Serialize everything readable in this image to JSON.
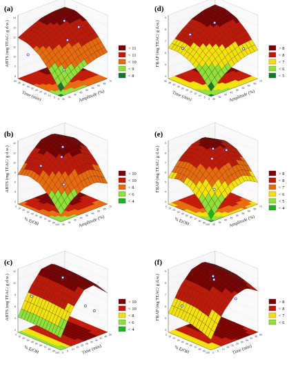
{
  "figure": {
    "palette": {
      "dark_red": "#7a0000",
      "red": "#c21807",
      "orange": "#e86a0c",
      "yellow": "#f4e20a",
      "light_green": "#8fe23a",
      "green": "#1db51d",
      "dark_green": "#0f7a2e",
      "point": "#2f3fc9"
    }
  },
  "chart_data": [
    {
      "panel": "(a)",
      "type": "surface",
      "xlabel": "Amplitude (%)",
      "ylabel": "Time (min)",
      "zlabel": "ABTS (mg TEAC/ g d.w.)",
      "xticks": [
        "30",
        "35",
        "40",
        "45",
        "50",
        "55",
        "60",
        "65",
        "70"
      ],
      "yticks": [
        "0",
        "5",
        "10",
        "15",
        "20",
        "25",
        "30",
        "35",
        "40",
        "45",
        "50"
      ],
      "zticks": [
        "8",
        "9",
        "10",
        "11",
        "12",
        "13",
        "14"
      ],
      "zlim": [
        7.5,
        14
      ],
      "legend": [
        "> 11",
        "< 11",
        "< 10",
        "< 9",
        "< 8"
      ],
      "legend_colors": [
        "#7a0000",
        "#c21807",
        "#e86a0c",
        "#8fe23a",
        "#0f7a2e"
      ],
      "grid": [
        [
          8.0,
          9.6,
          10.8,
          11.5,
          11.7
        ],
        [
          8.9,
          10.3,
          11.5,
          12.2,
          12.3
        ],
        [
          9.6,
          11.0,
          12.1,
          12.7,
          12.8
        ],
        [
          10.0,
          11.4,
          12.5,
          13.0,
          13.0
        ],
        [
          10.2,
          11.6,
          12.6,
          13.1,
          13.0
        ]
      ],
      "points": [
        [
          40,
          10,
          9.4
        ],
        [
          55,
          30,
          13.0
        ],
        [
          65,
          40,
          10.2
        ],
        [
          35,
          45,
          9.9
        ],
        [
          60,
          20,
          12.5
        ]
      ]
    },
    {
      "panel": "(b)",
      "type": "surface",
      "xlabel": "Amplitude (%)",
      "ylabel": "% EtOH",
      "zlabel": "ABTS (mg TEAC/ g d.w.)",
      "xticks": [
        "30",
        "35",
        "40",
        "45",
        "50",
        "55",
        "60",
        "65",
        "70"
      ],
      "yticks": [
        "100",
        "90",
        "80",
        "70",
        "60",
        "50",
        "40",
        "30",
        "20",
        "10",
        "0"
      ],
      "zticks": [
        "2",
        "4",
        "6",
        "8",
        "10",
        "12",
        "14"
      ],
      "zlim": [
        0,
        14
      ],
      "legend": [
        "> 10",
        "< 10",
        "< 8",
        "< 6",
        "< 4"
      ],
      "legend_colors": [
        "#7a0000",
        "#c21807",
        "#e86a0c",
        "#8fe23a",
        "#1db51d"
      ],
      "grid": [
        [
          1.5,
          4.5,
          6.5,
          7.2,
          6.5
        ],
        [
          4.0,
          7.5,
          9.8,
          10.6,
          10.0
        ],
        [
          5.5,
          9.5,
          12.0,
          12.8,
          12.3
        ],
        [
          5.8,
          9.8,
          12.3,
          13.1,
          12.6
        ],
        [
          4.5,
          8.2,
          10.7,
          11.6,
          11.1
        ]
      ],
      "points": [
        [
          50,
          50,
          12.6
        ],
        [
          40,
          20,
          6.5
        ],
        [
          60,
          80,
          8.2
        ],
        [
          35,
          60,
          9.5
        ]
      ]
    },
    {
      "panel": "(c)",
      "type": "surface",
      "xlabel": "Time (min)",
      "ylabel": "% EtOH",
      "zlabel": "ABTS (mg TEAC/ g d.w.)",
      "xticks": [
        "0",
        "5",
        "10",
        "15",
        "20",
        "25",
        "30",
        "35",
        "40",
        "45",
        "50"
      ],
      "yticks": [
        "100",
        "90",
        "80",
        "70",
        "60",
        "50",
        "40",
        "30",
        "20",
        "10",
        "0"
      ],
      "zticks": [
        "2",
        "4",
        "6",
        "8",
        "10",
        "12"
      ],
      "zlim": [
        0,
        13
      ],
      "legend": [
        "> 10",
        "< 10",
        "< 8",
        "< 6",
        "< 4"
      ],
      "legend_colors": [
        "#7a0000",
        "#c21807",
        "#f4e20a",
        "#8fe23a",
        "#1db51d"
      ],
      "grid": [
        [
          2.5,
          2.8,
          3.0,
          3.1,
          3.1
        ],
        [
          7.5,
          7.8,
          8.0,
          8.1,
          8.1
        ],
        [
          10.5,
          10.8,
          11.0,
          11.1,
          11.1
        ],
        [
          10.8,
          11.1,
          11.3,
          11.4,
          11.4
        ],
        [
          8.0,
          8.3,
          8.5,
          8.6,
          8.6
        ]
      ],
      "points": [
        [
          25,
          50,
          11.2
        ],
        [
          10,
          90,
          7.0
        ],
        [
          40,
          30,
          5.0
        ],
        [
          45,
          20,
          4.0
        ]
      ]
    },
    {
      "panel": "(d)",
      "type": "surface",
      "xlabel": "Amplitude (%)",
      "ylabel": "Time (min)",
      "zlabel": "FRAP (mg TEAC/ g d.w.)",
      "xticks": [
        "30",
        "35",
        "40",
        "45",
        "50",
        "55",
        "60",
        "65",
        "70"
      ],
      "yticks": [
        "0",
        "5",
        "10",
        "15",
        "20",
        "25",
        "30",
        "35",
        "40",
        "45",
        "50"
      ],
      "zticks": [
        "4",
        "5",
        "6",
        "7",
        "8",
        "9"
      ],
      "zlim": [
        3.5,
        9.5
      ],
      "legend": [
        "> 8",
        "< 8",
        "< 7",
        "< 6",
        "< 5"
      ],
      "legend_colors": [
        "#7a0000",
        "#c21807",
        "#f4e20a",
        "#8fe23a",
        "#0f7a2e"
      ],
      "grid": [
        [
          4.0,
          5.2,
          6.0,
          6.4,
          6.4
        ],
        [
          5.0,
          6.3,
          7.1,
          7.5,
          7.5
        ],
        [
          5.7,
          7.0,
          7.9,
          8.3,
          8.3
        ],
        [
          6.1,
          7.4,
          8.3,
          8.7,
          8.7
        ],
        [
          6.2,
          7.5,
          8.4,
          8.8,
          8.8
        ]
      ],
      "points": [
        [
          55,
          30,
          8.4
        ],
        [
          35,
          40,
          6.5
        ],
        [
          65,
          10,
          6.2
        ],
        [
          45,
          45,
          7.2
        ]
      ]
    },
    {
      "panel": "(e)",
      "type": "surface",
      "xlabel": "Amplitude (%)",
      "ylabel": "% EtOH",
      "zlabel": "FRAP (mg TEAC/ g d.w.)",
      "xticks": [
        "30",
        "35",
        "40",
        "45",
        "50",
        "55",
        "60",
        "65",
        "70"
      ],
      "yticks": [
        "100",
        "90",
        "80",
        "70",
        "60",
        "50",
        "40",
        "30",
        "20",
        "10",
        "0"
      ],
      "zticks": [
        "3",
        "4",
        "5",
        "6",
        "7",
        "8",
        "9"
      ],
      "zlim": [
        2.5,
        9.5
      ],
      "legend": [
        "> 8",
        "< 8",
        "< 7",
        "< 6",
        "< 5",
        "< 4"
      ],
      "legend_colors": [
        "#7a0000",
        "#c21807",
        "#e86a0c",
        "#f4e20a",
        "#8fe23a",
        "#1db51d"
      ],
      "grid": [
        [
          2.8,
          4.3,
          5.3,
          5.7,
          5.4
        ],
        [
          4.3,
          5.9,
          7.0,
          7.4,
          7.1
        ],
        [
          5.3,
          6.9,
          8.0,
          8.4,
          8.1
        ],
        [
          5.6,
          7.2,
          8.3,
          8.7,
          8.4
        ],
        [
          4.9,
          6.5,
          7.6,
          8.0,
          7.7
        ]
      ],
      "points": [
        [
          50,
          50,
          8.6
        ],
        [
          40,
          20,
          5.2
        ],
        [
          60,
          80,
          6.4
        ],
        [
          65,
          60,
          7.5
        ]
      ]
    },
    {
      "panel": "(f)",
      "type": "surface",
      "xlabel": "Time (min)",
      "ylabel": "% EtOH",
      "zlabel": "FRAP (mg TEAC/ g d.w.)",
      "xticks": [
        "0",
        "5",
        "10",
        "15",
        "20",
        "25",
        "30",
        "35",
        "40",
        "45",
        "50"
      ],
      "yticks": [
        "100",
        "90",
        "80",
        "70",
        "60",
        "50",
        "40",
        "30",
        "20",
        "10",
        "0"
      ],
      "zticks": [
        "4",
        "5",
        "6",
        "7",
        "8",
        "9"
      ],
      "zlim": [
        3.5,
        9.5
      ],
      "legend": [
        "> 8",
        "< 8",
        "< 7",
        "< 6"
      ],
      "legend_colors": [
        "#7a0000",
        "#c21807",
        "#f4e20a",
        "#8fe23a"
      ],
      "grid": [
        [
          4.5,
          4.9,
          5.2,
          5.3,
          5.3
        ],
        [
          6.6,
          7.0,
          7.3,
          7.4,
          7.4
        ],
        [
          7.8,
          8.2,
          8.5,
          8.6,
          8.6
        ],
        [
          8.1,
          8.5,
          8.8,
          8.9,
          8.9
        ],
        [
          7.4,
          7.8,
          8.1,
          8.2,
          8.2
        ]
      ],
      "points": [
        [
          25,
          50,
          8.8
        ],
        [
          10,
          90,
          5.8
        ],
        [
          40,
          30,
          6.5
        ],
        [
          35,
          70,
          7.8
        ]
      ]
    }
  ]
}
